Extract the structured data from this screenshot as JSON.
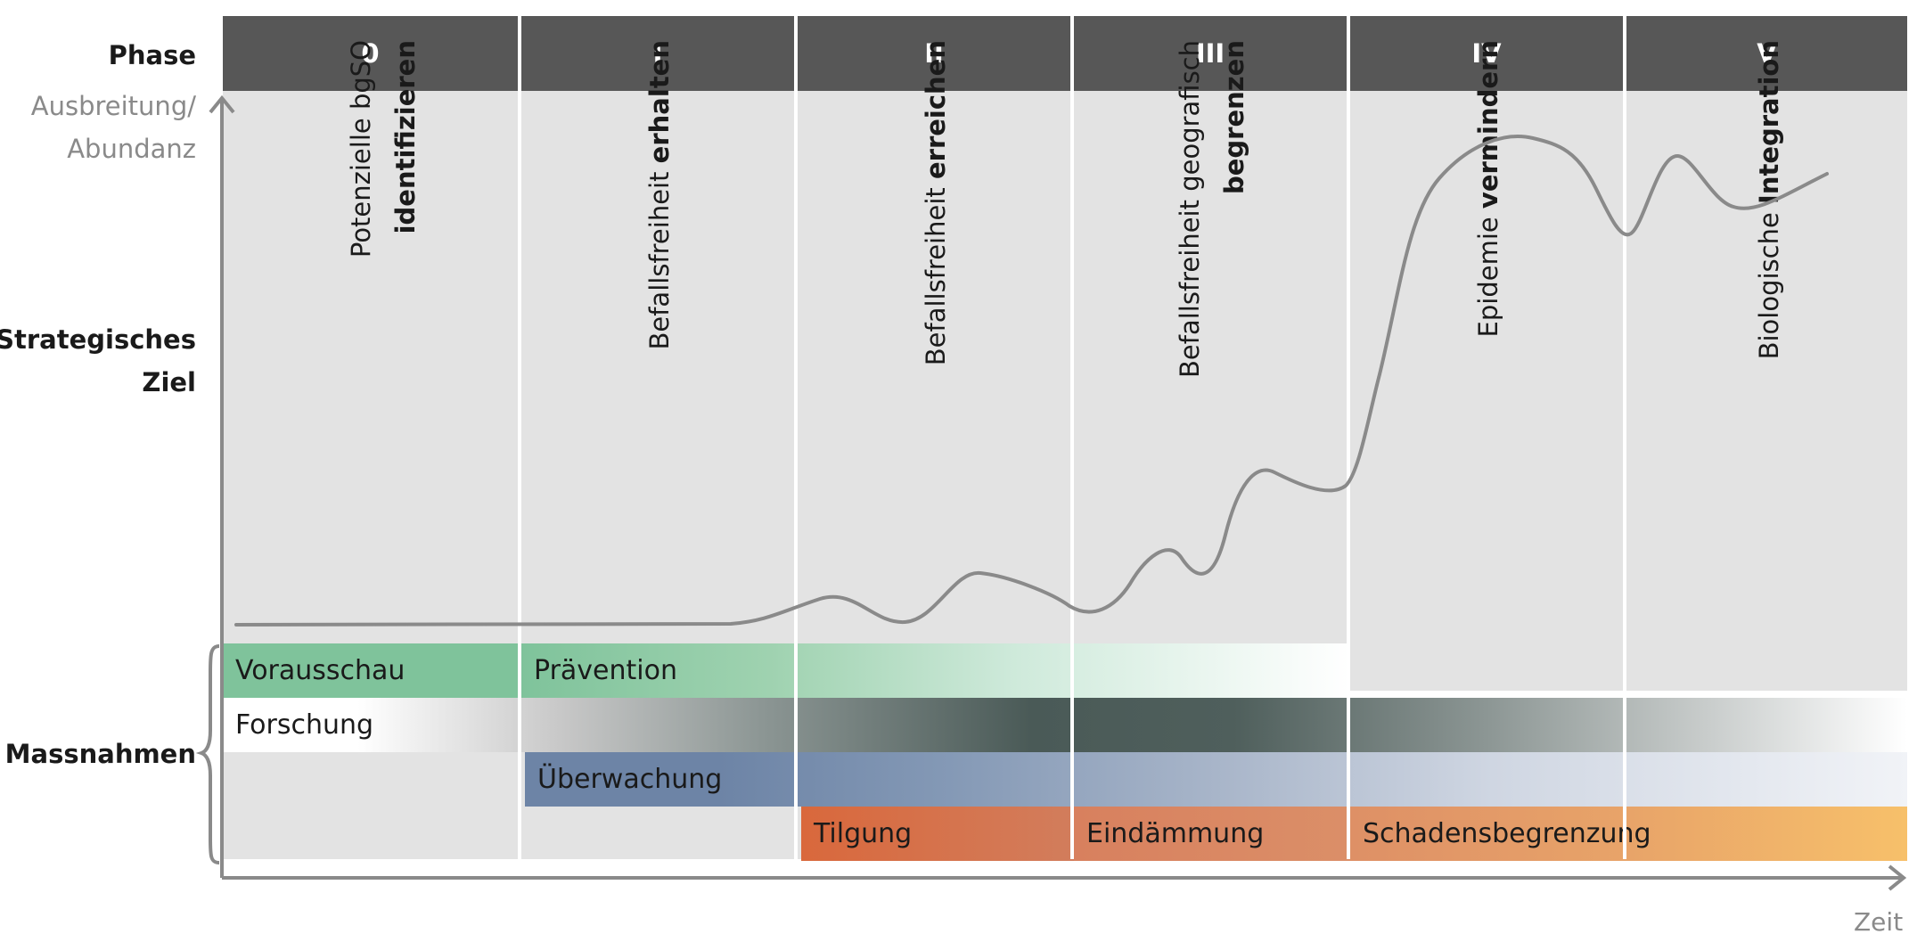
{
  "labels": {
    "phase": "Phase",
    "y_axis_line1": "Ausbreitung/",
    "y_axis_line2": "Abundanz",
    "goal_line1": "Strategisches",
    "goal_line2": "Ziel",
    "measures": "Massnahmen",
    "x_axis": "Zeit"
  },
  "phases": [
    {
      "id": "0",
      "goal_normal": "Potenzielle bgSO",
      "goal_bold": "identifizieren",
      "goal_layout": "two-line"
    },
    {
      "id": "I",
      "goal_normal": "Befallsfreiheit ",
      "goal_bold": "erhalten",
      "goal_layout": "one-line"
    },
    {
      "id": "II",
      "goal_normal": "Befallsfreiheit ",
      "goal_bold": "erreichen",
      "goal_layout": "one-line"
    },
    {
      "id": "III",
      "goal_normal": "Befallsfreiheit geografisch",
      "goal_bold": "begrenzen",
      "goal_layout": "two-line"
    },
    {
      "id": "IV",
      "goal_normal": "Epidemie ",
      "goal_bold": "vermindern",
      "goal_layout": "one-line"
    },
    {
      "id": "V",
      "goal_normal": "Biologische ",
      "goal_bold": "Integration",
      "goal_layout": "one-line"
    }
  ],
  "measures": {
    "vorausschau": "Vorausschau",
    "praevention": "Prävention",
    "forschung": "Forschung",
    "ueberwachung": "Überwachung",
    "tilgung": "Tilgung",
    "eindaemmung": "Eindämmung",
    "schadensbegrenzung": "Schadensbegrenzung"
  },
  "colors": {
    "header": "#575757",
    "column": "#e3e3e3",
    "green": "#7fc39b",
    "dark_slate": "#4a5a57",
    "blue": "#6d84a6",
    "orange": "#d96a3e",
    "amber": "#f6bd67",
    "curve": "#8a8a8a",
    "axis": "#8a8a8a"
  },
  "curve": {
    "description_points": [
      [
        0.0,
        0.04
      ],
      [
        0.3,
        0.04
      ],
      [
        0.4,
        0.06
      ],
      [
        0.44,
        0.14
      ],
      [
        0.48,
        0.05
      ],
      [
        0.52,
        0.07
      ],
      [
        0.56,
        0.26
      ],
      [
        0.6,
        0.16
      ],
      [
        0.64,
        0.1
      ],
      [
        0.67,
        0.35
      ],
      [
        0.7,
        0.2
      ],
      [
        0.72,
        0.55
      ],
      [
        0.74,
        0.45
      ],
      [
        0.78,
        1.4
      ],
      [
        0.81,
        2.05
      ],
      [
        0.86,
        1.75
      ],
      [
        0.88,
        1.62
      ],
      [
        0.91,
        1.76
      ],
      [
        0.94,
        1.64
      ],
      [
        1.0,
        1.72
      ]
    ]
  }
}
